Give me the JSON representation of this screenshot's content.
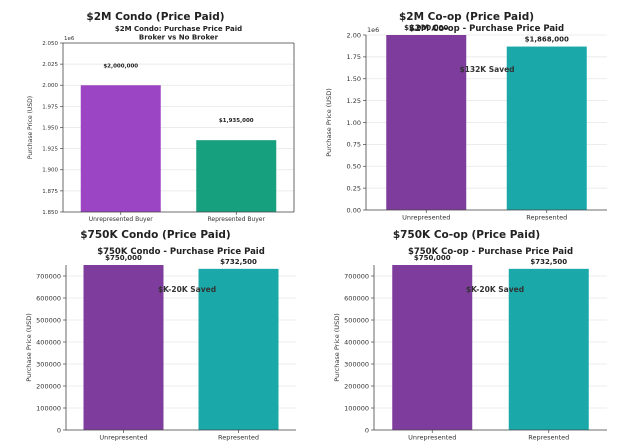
{
  "chart_data": [
    {
      "type": "bar",
      "panel_title": "$2M Condo (Price Paid)",
      "title": "$2M Condo: Purchase Price Paid\nBroker vs No Broker",
      "xlabel": "",
      "ylabel": "Purchase Price (USD)",
      "scale_label": "1e6",
      "ylim": [
        1850000,
        2050000
      ],
      "ticks": [
        1850000,
        1875000,
        1900000,
        1925000,
        1950000,
        1975000,
        2000000,
        2025000,
        2050000
      ],
      "tick_labels": [
        "1.850",
        "1.875",
        "1.900",
        "1.925",
        "1.950",
        "1.975",
        "2.000",
        "2.025",
        "2.050"
      ],
      "categories": [
        "Unrepresented Buyer",
        "Represented Buyer"
      ],
      "values": [
        2000000,
        1935000
      ],
      "value_labels": [
        "$2,000,000",
        "$1,935,000"
      ],
      "colors": [
        "#9b45c4",
        "#17a07e"
      ],
      "annotation": "",
      "grid": true
    },
    {
      "type": "bar",
      "panel_title": "$2M Co-op (Price Paid)",
      "title": "$2M Co-op - Purchase Price Paid",
      "xlabel": "",
      "ylabel": "Purchase Price (USD)",
      "scale_label": "1e6",
      "ylim": [
        0,
        2000000
      ],
      "ticks": [
        0,
        250000,
        500000,
        750000,
        1000000,
        1250000,
        1500000,
        1750000,
        2000000
      ],
      "tick_labels": [
        "0.00",
        "0.25",
        "0.50",
        "0.75",
        "1.00",
        "1.25",
        "1.50",
        "1.75",
        "2.00"
      ],
      "categories": [
        "Unrepresented",
        "Represented"
      ],
      "values": [
        2000000,
        1868000
      ],
      "value_labels": [
        "$2,000,000",
        "$1,868,000"
      ],
      "colors": [
        "#7e3d9c",
        "#1aa8a8"
      ],
      "annotation": "$132K Saved",
      "grid": true
    },
    {
      "type": "bar",
      "panel_title": "$750K Condo (Price Paid)",
      "title": "$750K Condo - Purchase Price Paid",
      "xlabel": "",
      "ylabel": "Purchase Price (USD)",
      "scale_label": "",
      "ylim": [
        0,
        750000
      ],
      "ticks": [
        0,
        100000,
        200000,
        300000,
        400000,
        500000,
        600000,
        700000
      ],
      "tick_labels": [
        "0",
        "100000",
        "200000",
        "300000",
        "400000",
        "500000",
        "600000",
        "700000"
      ],
      "categories": [
        "Unrepresented",
        "Represented"
      ],
      "values": [
        750000,
        732500
      ],
      "value_labels": [
        "$750,000",
        "$732,500"
      ],
      "colors": [
        "#7e3d9c",
        "#1aa8a8"
      ],
      "annotation": "$K-20K Saved",
      "grid": true
    },
    {
      "type": "bar",
      "panel_title": "$750K Co-op (Price Paid)",
      "title": "$750K Co-op - Purchase Price Paid",
      "xlabel": "",
      "ylabel": "Purchase Price (USD)",
      "scale_label": "",
      "ylim": [
        0,
        750000
      ],
      "ticks": [
        0,
        100000,
        200000,
        300000,
        400000,
        500000,
        600000,
        700000
      ],
      "tick_labels": [
        "0",
        "100000",
        "200000",
        "300000",
        "400000",
        "500000",
        "600000",
        "700000"
      ],
      "categories": [
        "Unrepresented",
        "Represented"
      ],
      "values": [
        750000,
        732500
      ],
      "value_labels": [
        "$750,000",
        "$732,500"
      ],
      "colors": [
        "#7e3d9c",
        "#1aa8a8"
      ],
      "annotation": "$K-20K Saved",
      "grid": true
    }
  ]
}
